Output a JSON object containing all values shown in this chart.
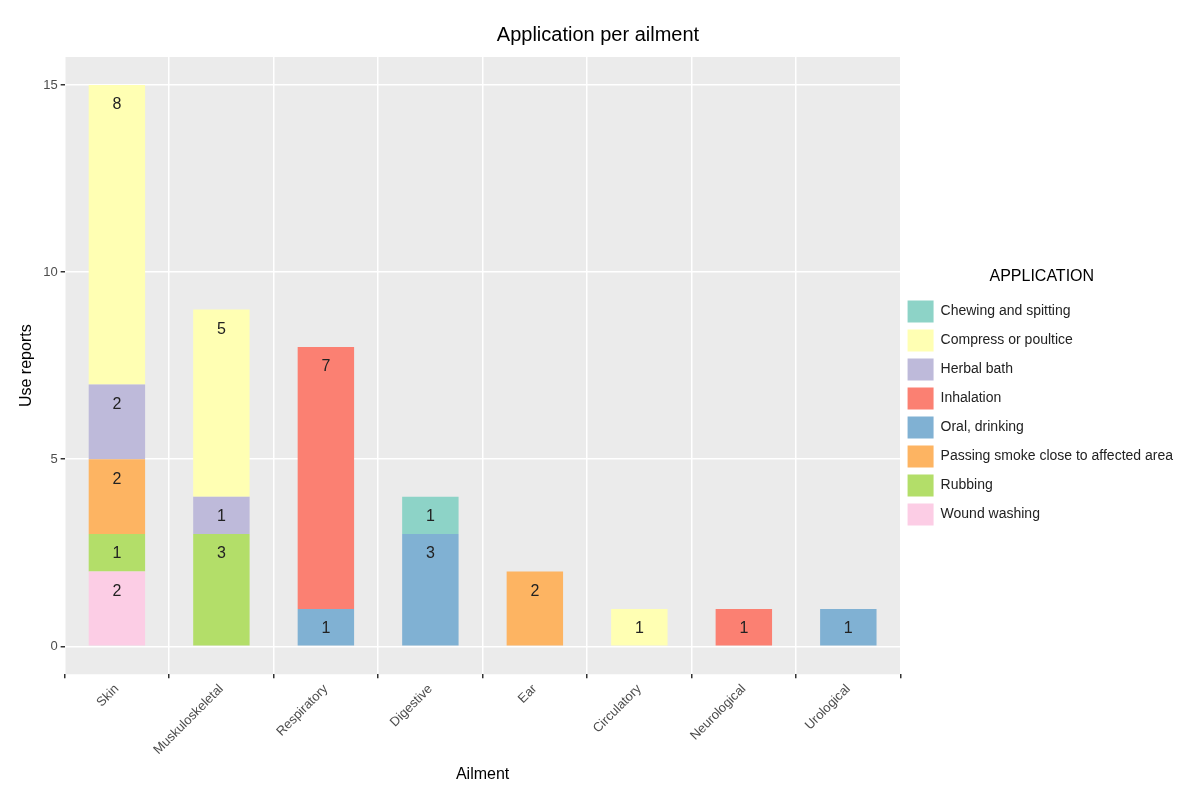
{
  "chart_data": {
    "type": "bar",
    "title": "Application per ailment",
    "xlabel": "Ailment",
    "ylabel": "Use reports",
    "legend_title": "APPLICATION",
    "categories": [
      "Skin",
      "Muskuloskeletal",
      "Respiratory",
      "Digestive",
      "Ear",
      "Circulatory",
      "Neurological",
      "Urological"
    ],
    "stacked": true,
    "ylim": [
      -0.75,
      15.75
    ],
    "yticks": [
      0,
      5,
      10,
      15
    ],
    "grid": true,
    "legend": "right",
    "data_labels": true,
    "series": [
      {
        "name": "Wound washing",
        "color": "#fccde5",
        "values": [
          2,
          null,
          null,
          null,
          null,
          null,
          null,
          null
        ]
      },
      {
        "name": "Rubbing",
        "color": "#b3de69",
        "values": [
          1,
          3,
          null,
          null,
          null,
          null,
          null,
          null
        ]
      },
      {
        "name": "Passing smoke close to affected area",
        "color": "#fdb462",
        "values": [
          2,
          null,
          null,
          null,
          2,
          null,
          null,
          null
        ]
      },
      {
        "name": "Oral, drinking",
        "color": "#80b1d3",
        "values": [
          null,
          null,
          1,
          3,
          null,
          null,
          null,
          1
        ]
      },
      {
        "name": "Inhalation",
        "color": "#fb8072",
        "values": [
          null,
          null,
          7,
          null,
          null,
          null,
          1,
          null
        ]
      },
      {
        "name": "Herbal bath",
        "color": "#bebada",
        "values": [
          2,
          1,
          null,
          null,
          null,
          null,
          null,
          null
        ]
      },
      {
        "name": "Compress or poultice",
        "color": "#ffffb3",
        "values": [
          8,
          5,
          null,
          null,
          null,
          1,
          null,
          null
        ]
      },
      {
        "name": "Chewing and spitting",
        "color": "#8dd3c7",
        "values": [
          null,
          null,
          null,
          1,
          null,
          null,
          null,
          null
        ]
      }
    ]
  }
}
